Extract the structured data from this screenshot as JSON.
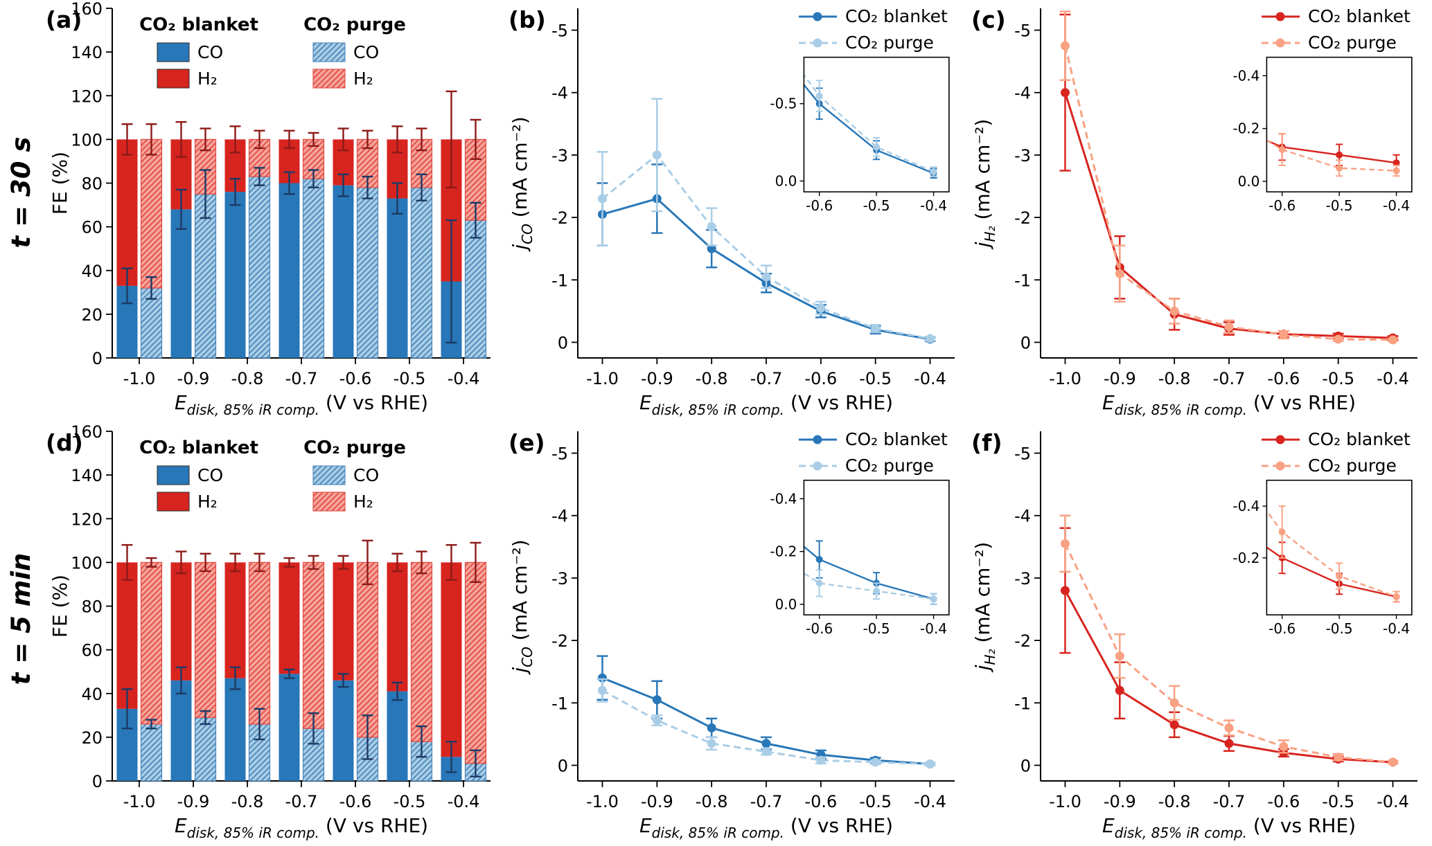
{
  "figure": {
    "row_labels": [
      "t = 30 s",
      "t = 5 min"
    ],
    "colors": {
      "blue": "#2877b8",
      "red": "#d7241f",
      "light_blue": "#a9cde6",
      "light_red": "#f6a49b",
      "salmon": "#f9a183",
      "hatch_blue": "#4a86ba",
      "hatch_red": "#e04b43",
      "navy_err": "#1c3a66",
      "maroon_err": "#8c1a18",
      "axis": "#000000"
    }
  },
  "chart_data": [
    {
      "type": "bar",
      "panel": "(a)",
      "time_label": "t = 30 s",
      "ylabel_parts": [
        {
          "t": "FE (%)"
        }
      ],
      "xlabel_parts": [
        {
          "t": "E",
          "i": 1
        },
        {
          "t": "disk, 85% iR comp.",
          "i": 1,
          "sub": 1
        },
        {
          "t": " (V vs RHE)"
        }
      ],
      "ylim": [
        0,
        160
      ],
      "yticks": [
        0,
        20,
        40,
        60,
        80,
        100,
        120,
        140,
        160
      ],
      "categories": [
        "-1.0",
        "-0.9",
        "-0.8",
        "-0.7",
        "-0.6",
        "-0.5",
        "-0.4"
      ],
      "legend": {
        "headers": [
          "CO₂ blanket",
          "CO₂ purge"
        ],
        "entries": [
          "CO",
          "H₂",
          "CO",
          "H₂"
        ]
      },
      "blanket": {
        "co": [
          33,
          68,
          76,
          80,
          79,
          73,
          35
        ],
        "co_err": [
          8,
          9,
          6,
          5,
          5,
          7,
          28
        ],
        "h2": [
          67,
          32,
          24,
          20,
          21,
          27,
          65
        ],
        "total_err": [
          7,
          8,
          6,
          4,
          5,
          6,
          22
        ]
      },
      "purge": {
        "co": [
          32,
          75,
          83,
          82,
          78,
          78,
          63
        ],
        "co_err": [
          5,
          11,
          4,
          4,
          5,
          6,
          8
        ],
        "h2": [
          68,
          25,
          17,
          18,
          22,
          22,
          37
        ],
        "total_err": [
          7,
          5,
          4,
          3,
          4,
          5,
          9
        ]
      }
    },
    {
      "type": "line",
      "panel": "(b)",
      "ylabel_parts": [
        {
          "t": "j",
          "i": 1
        },
        {
          "t": "CO",
          "i": 1,
          "sub": 1
        },
        {
          "t": " (mA cm⁻²)"
        }
      ],
      "xlabel_parts": [
        {
          "t": "E",
          "i": 1
        },
        {
          "t": "disk, 85% iR comp.",
          "i": 1,
          "sub": 1
        },
        {
          "t": " (V vs RHE)"
        }
      ],
      "x": [
        -1.0,
        -0.9,
        -0.8,
        -0.7,
        -0.6,
        -0.5,
        -0.4
      ],
      "xtick_labels": [
        "-1.0",
        "-0.9",
        "-0.8",
        "-0.7",
        "-0.6",
        "-0.5",
        "-0.4"
      ],
      "ylim": [
        0.25,
        -5.35
      ],
      "yticks": [
        0,
        -1,
        -2,
        -3,
        -4,
        -5
      ],
      "ytick_labels": [
        "0",
        "-1",
        "-2",
        "-3",
        "-4",
        "-5"
      ],
      "series": [
        {
          "name": "CO₂ blanket",
          "dash": false,
          "color": "blue",
          "values": [
            -2.05,
            -2.3,
            -1.5,
            -0.95,
            -0.5,
            -0.2,
            -0.05
          ],
          "err": [
            0.5,
            0.55,
            0.3,
            0.15,
            0.1,
            0.06,
            0.03
          ]
        },
        {
          "name": "CO₂ purge",
          "dash": true,
          "color": "light_blue",
          "values": [
            -2.3,
            -3.0,
            -1.85,
            -1.05,
            -0.55,
            -0.22,
            -0.06
          ],
          "err": [
            0.75,
            0.9,
            0.3,
            0.18,
            0.1,
            0.06,
            0.03
          ]
        }
      ],
      "inset": {
        "xlim": [
          -0.627,
          -0.373
        ],
        "ylim": [
          0.07,
          -0.8
        ],
        "yticks": [
          -0.5,
          0.0
        ],
        "ytick_labels": [
          "-0.5",
          "0.0"
        ],
        "xticks": [
          -0.6,
          -0.5,
          -0.4
        ],
        "xtick_labels": [
          "-0.6",
          "-0.5",
          "-0.4"
        ]
      }
    },
    {
      "type": "line",
      "panel": "(c)",
      "ylabel_parts": [
        {
          "t": "j",
          "i": 1
        },
        {
          "t": "H₂",
          "i": 1,
          "sub": 1
        },
        {
          "t": " (mA cm⁻²)"
        }
      ],
      "xlabel_parts": [
        {
          "t": "E",
          "i": 1
        },
        {
          "t": "disk, 85% iR comp.",
          "i": 1,
          "sub": 1
        },
        {
          "t": " (V vs RHE)"
        }
      ],
      "x": [
        -1.0,
        -0.9,
        -0.8,
        -0.7,
        -0.6,
        -0.5,
        -0.4
      ],
      "xtick_labels": [
        "-1.0",
        "-0.9",
        "-0.8",
        "-0.7",
        "-0.6",
        "-0.5",
        "-0.4"
      ],
      "ylim": [
        0.25,
        -5.35
      ],
      "yticks": [
        0,
        -1,
        -2,
        -3,
        -4,
        -5
      ],
      "ytick_labels": [
        "0",
        "-1",
        "-2",
        "-3",
        "-4",
        "-5"
      ],
      "series": [
        {
          "name": "CO₂ blanket",
          "dash": false,
          "color": "red",
          "values": [
            -4.0,
            -1.2,
            -0.45,
            -0.22,
            -0.13,
            -0.1,
            -0.07
          ],
          "err": [
            1.25,
            0.5,
            0.25,
            0.1,
            0.05,
            0.04,
            0.03
          ]
        },
        {
          "name": "CO₂ purge",
          "dash": true,
          "color": "salmon",
          "values": [
            -4.75,
            -1.1,
            -0.5,
            -0.25,
            -0.12,
            -0.05,
            -0.04
          ],
          "err": [
            0.55,
            0.45,
            0.2,
            0.1,
            0.06,
            0.03,
            0.02
          ]
        }
      ],
      "inset": {
        "xlim": [
          -0.627,
          -0.373
        ],
        "ylim": [
          0.04,
          -0.47
        ],
        "yticks": [
          -0.4,
          -0.2,
          0.0
        ],
        "ytick_labels": [
          "-0.4",
          "-0.2",
          "0.0"
        ],
        "xticks": [
          -0.6,
          -0.5,
          -0.4
        ],
        "xtick_labels": [
          "-0.6",
          "-0.5",
          "-0.4"
        ]
      }
    },
    {
      "type": "bar",
      "panel": "(d)",
      "time_label": "t = 5 min",
      "ylabel_parts": [
        {
          "t": "FE (%)"
        }
      ],
      "xlabel_parts": [
        {
          "t": "E",
          "i": 1
        },
        {
          "t": "disk, 85% iR comp.",
          "i": 1,
          "sub": 1
        },
        {
          "t": " (V vs RHE)"
        }
      ],
      "ylim": [
        0,
        160
      ],
      "yticks": [
        0,
        20,
        40,
        60,
        80,
        100,
        120,
        140,
        160
      ],
      "categories": [
        "-1.0",
        "-0.9",
        "-0.8",
        "-0.7",
        "-0.6",
        "-0.5",
        "-0.4"
      ],
      "legend": {
        "headers": [
          "CO₂ blanket",
          "CO₂ purge"
        ],
        "entries": [
          "CO",
          "H₂",
          "CO",
          "H₂"
        ]
      },
      "blanket": {
        "co": [
          33,
          46,
          47,
          49,
          46,
          41,
          11
        ],
        "co_err": [
          9,
          6,
          5,
          2,
          3,
          4,
          7
        ],
        "h2": [
          67,
          54,
          53,
          51,
          54,
          59,
          89
        ],
        "total_err": [
          8,
          5,
          4,
          2,
          3,
          4,
          8
        ]
      },
      "purge": {
        "co": [
          26,
          29,
          26,
          24,
          20,
          18,
          8
        ],
        "co_err": [
          2,
          3,
          7,
          7,
          10,
          7,
          6
        ],
        "h2": [
          74,
          71,
          74,
          76,
          80,
          82,
          92
        ],
        "total_err": [
          2,
          4,
          4,
          3,
          10,
          5,
          9
        ]
      }
    },
    {
      "type": "line",
      "panel": "(e)",
      "ylabel_parts": [
        {
          "t": "j",
          "i": 1
        },
        {
          "t": "CO",
          "i": 1,
          "sub": 1
        },
        {
          "t": " (mA cm⁻²)"
        }
      ],
      "xlabel_parts": [
        {
          "t": "E",
          "i": 1
        },
        {
          "t": "disk, 85% iR comp.",
          "i": 1,
          "sub": 1
        },
        {
          "t": " (V vs RHE)"
        }
      ],
      "x": [
        -1.0,
        -0.9,
        -0.8,
        -0.7,
        -0.6,
        -0.5,
        -0.4
      ],
      "xtick_labels": [
        "-1.0",
        "-0.9",
        "-0.8",
        "-0.7",
        "-0.6",
        "-0.5",
        "-0.4"
      ],
      "ylim": [
        0.25,
        -5.35
      ],
      "yticks": [
        0,
        -1,
        -2,
        -3,
        -4,
        -5
      ],
      "ytick_labels": [
        "0",
        "-1",
        "-2",
        "-3",
        "-4",
        "-5"
      ],
      "series": [
        {
          "name": "CO₂ blanket",
          "dash": false,
          "color": "blue",
          "values": [
            -1.4,
            -1.05,
            -0.6,
            -0.35,
            -0.17,
            -0.08,
            -0.02
          ],
          "err": [
            0.35,
            0.3,
            0.15,
            0.1,
            0.07,
            0.04,
            0.02
          ]
        },
        {
          "name": "CO₂ purge",
          "dash": true,
          "color": "light_blue",
          "values": [
            -1.2,
            -0.72,
            -0.35,
            -0.22,
            -0.08,
            -0.05,
            -0.02
          ],
          "err": [
            0.18,
            0.08,
            0.1,
            0.05,
            0.05,
            0.03,
            0.02
          ]
        }
      ],
      "inset": {
        "xlim": [
          -0.627,
          -0.373
        ],
        "ylim": [
          0.04,
          -0.47
        ],
        "yticks": [
          -0.4,
          -0.2,
          0.0
        ],
        "ytick_labels": [
          "-0.4",
          "-0.2",
          "0.0"
        ],
        "xticks": [
          -0.6,
          -0.5,
          -0.4
        ],
        "xtick_labels": [
          "-0.6",
          "-0.5",
          "-0.4"
        ]
      }
    },
    {
      "type": "line",
      "panel": "(f)",
      "ylabel_parts": [
        {
          "t": "j",
          "i": 1
        },
        {
          "t": "H₂",
          "i": 1,
          "sub": 1
        },
        {
          "t": " (mA cm⁻²)"
        }
      ],
      "xlabel_parts": [
        {
          "t": "E",
          "i": 1
        },
        {
          "t": "disk, 85% iR comp.",
          "i": 1,
          "sub": 1
        },
        {
          "t": " (V vs RHE)"
        }
      ],
      "x": [
        -1.0,
        -0.9,
        -0.8,
        -0.7,
        -0.6,
        -0.5,
        -0.4
      ],
      "xtick_labels": [
        "-1.0",
        "-0.9",
        "-0.8",
        "-0.7",
        "-0.6",
        "-0.5",
        "-0.4"
      ],
      "ylim": [
        0.25,
        -5.35
      ],
      "yticks": [
        0,
        -1,
        -2,
        -3,
        -4,
        -5
      ],
      "ytick_labels": [
        "0",
        "-1",
        "-2",
        "-3",
        "-4",
        "-5"
      ],
      "series": [
        {
          "name": "CO₂ blanket",
          "dash": false,
          "color": "red",
          "values": [
            -2.8,
            -1.2,
            -0.65,
            -0.35,
            -0.2,
            -0.1,
            -0.05
          ],
          "err": [
            1.0,
            0.45,
            0.2,
            0.12,
            0.06,
            0.04,
            0.02
          ]
        },
        {
          "name": "CO₂ purge",
          "dash": true,
          "color": "salmon",
          "values": [
            -3.55,
            -1.75,
            -1.0,
            -0.6,
            -0.3,
            -0.13,
            -0.05
          ],
          "err": [
            0.45,
            0.35,
            0.27,
            0.12,
            0.1,
            0.05,
            0.02
          ]
        }
      ],
      "inset": {
        "xlim": [
          -0.627,
          -0.373
        ],
        "ylim": [
          0.02,
          -0.5
        ],
        "yticks": [
          -0.4,
          -0.2
        ],
        "ytick_labels": [
          "-0.4",
          "-0.2"
        ],
        "xticks": [
          -0.6,
          -0.5,
          -0.4
        ],
        "xtick_labels": [
          "-0.6",
          "-0.5",
          "-0.4"
        ]
      }
    }
  ]
}
